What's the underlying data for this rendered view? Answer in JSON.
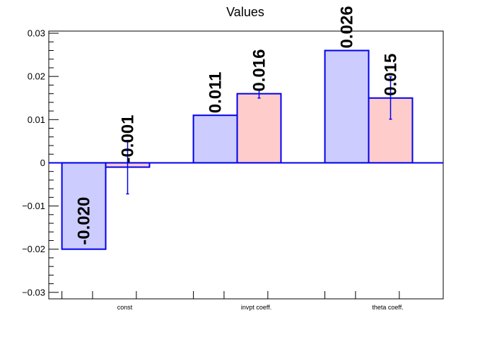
{
  "chart_data": {
    "type": "bar",
    "title": "Values",
    "categories": [
      "const",
      "invpt coeff.",
      "theta coeff."
    ],
    "series": [
      {
        "values": [
          -0.02,
          0.011,
          0.026
        ],
        "labels": [
          "-0.020",
          "0.011",
          "0.026"
        ],
        "fill": "#ccccff",
        "stroke": "#0000ee"
      },
      {
        "values": [
          -0.001,
          0.016,
          0.015
        ],
        "errors": [
          0.0062,
          0.001,
          0.0049
        ],
        "labels": [
          "-0.001",
          "0.016",
          "0.015"
        ],
        "fill": "#ffcccc",
        "stroke": "#0000ee"
      }
    ],
    "ylim": [
      -0.0315,
      0.0305
    ],
    "yticks": [
      -0.03,
      -0.02,
      -0.01,
      0,
      0.01,
      0.02,
      0.03
    ],
    "ytick_labels": [
      "−0.03",
      "−0.02",
      "−0.01",
      "0",
      "0.01",
      "0.02",
      "0.03"
    ],
    "grid": false,
    "legend": false,
    "colors": {
      "axis": "#000000",
      "zero_line": "#0000ee"
    }
  }
}
